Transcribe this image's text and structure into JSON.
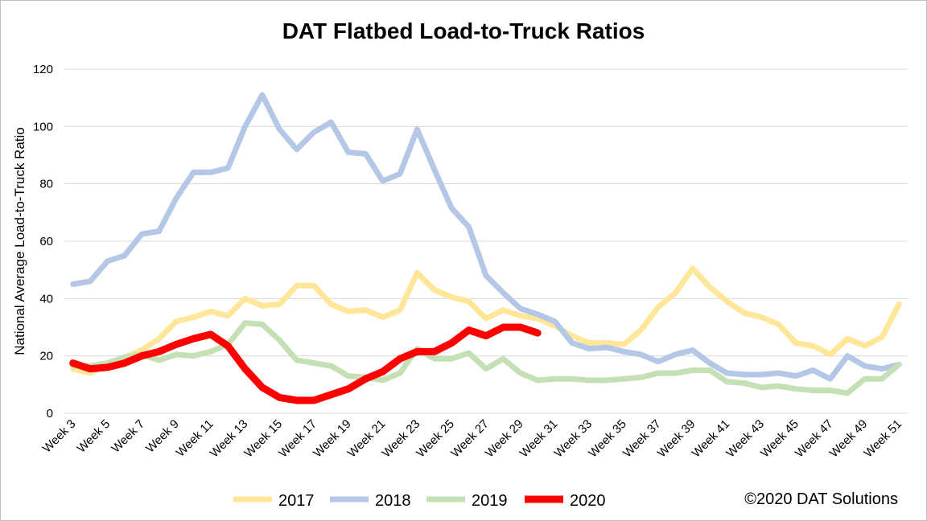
{
  "chart_data": {
    "type": "line",
    "title": "DAT Flatbed Load-to-Truck Ratios",
    "y_label": "National Average Load-to-Truck Ratio",
    "source": "©2020 DAT Solutions",
    "categories": [
      "Week 3",
      null,
      "Week 5",
      null,
      "Week 7",
      null,
      "Week 9",
      null,
      "Week 11",
      null,
      "Week 13",
      null,
      "Week 15",
      null,
      "Week 17",
      null,
      "Week 19",
      null,
      "Week 21",
      null,
      "Week 23",
      null,
      "Week 25",
      null,
      "Week 27",
      null,
      "Week 29",
      null,
      "Week 31",
      null,
      "Week 33",
      null,
      "Week 35",
      null,
      "Week 37",
      null,
      "Week 39",
      null,
      "Week 41",
      null,
      "Week 43",
      null,
      "Week 45",
      null,
      "Week 47",
      null,
      "Week 49",
      null,
      "Week 51"
    ],
    "series": [
      {
        "name": "2017",
        "color": "#ffe699",
        "values": [
          15.5,
          14,
          17,
          19.5,
          22,
          26,
          32,
          33.5,
          35.5,
          34,
          40,
          37.5,
          38,
          44.5,
          44.5,
          38,
          35.5,
          36,
          33.5,
          36,
          49,
          43,
          40.5,
          39,
          33,
          36,
          34,
          33,
          30.5,
          27,
          24.5,
          24.5,
          24,
          29,
          37,
          42,
          50.5,
          44,
          39,
          35,
          33.5,
          31,
          24.5,
          23.5,
          20.5,
          26,
          23.5,
          26.5,
          38
        ]
      },
      {
        "name": "2018",
        "color": "#b4c7e7",
        "values": [
          45,
          46,
          53,
          55,
          62.5,
          63.5,
          75,
          84,
          84,
          85.5,
          100,
          111,
          99,
          92,
          98,
          101.5,
          91,
          90.5,
          81,
          83.5,
          99,
          85,
          71.5,
          65,
          48,
          42,
          36.5,
          34.5,
          32,
          24.5,
          22.5,
          23,
          21.5,
          20.5,
          18,
          20.5,
          22,
          17.5,
          14,
          13.5,
          13.5,
          14,
          13,
          15,
          12,
          20,
          16.5,
          15.5,
          17
        ]
      },
      {
        "name": "2019",
        "color": "#c5e0b4",
        "values": [
          16.5,
          16.5,
          17.5,
          19.5,
          20.5,
          18.5,
          20.5,
          20,
          21.5,
          24,
          31.5,
          31,
          25.5,
          18.5,
          17.5,
          16.5,
          13,
          12.5,
          11.5,
          14,
          22.5,
          19,
          19,
          21,
          15.5,
          19,
          14,
          11.5,
          12,
          12,
          11.5,
          11.5,
          12,
          12.5,
          14,
          14,
          15,
          15,
          11,
          10.5,
          9,
          9.5,
          8.5,
          8,
          8,
          7,
          12,
          12,
          17
        ]
      },
      {
        "name": "2020",
        "color": "#ff0000",
        "values": [
          17.5,
          15.5,
          16,
          17.5,
          20,
          21.5,
          24,
          26,
          27.5,
          23.5,
          15.5,
          9,
          5.5,
          4.5,
          4.5,
          6.5,
          8.5,
          12,
          14.5,
          19,
          21.5,
          21.5,
          24.5,
          29,
          27,
          30,
          30,
          28,
          null,
          null,
          null,
          null,
          null,
          null,
          null,
          null,
          null,
          null,
          null,
          null,
          null,
          null,
          null,
          null,
          null,
          null,
          null,
          null,
          null
        ]
      }
    ],
    "ylim": [
      0,
      120
    ],
    "yticks": [
      0,
      20,
      40,
      60,
      80,
      100,
      120
    ],
    "grid": true
  }
}
